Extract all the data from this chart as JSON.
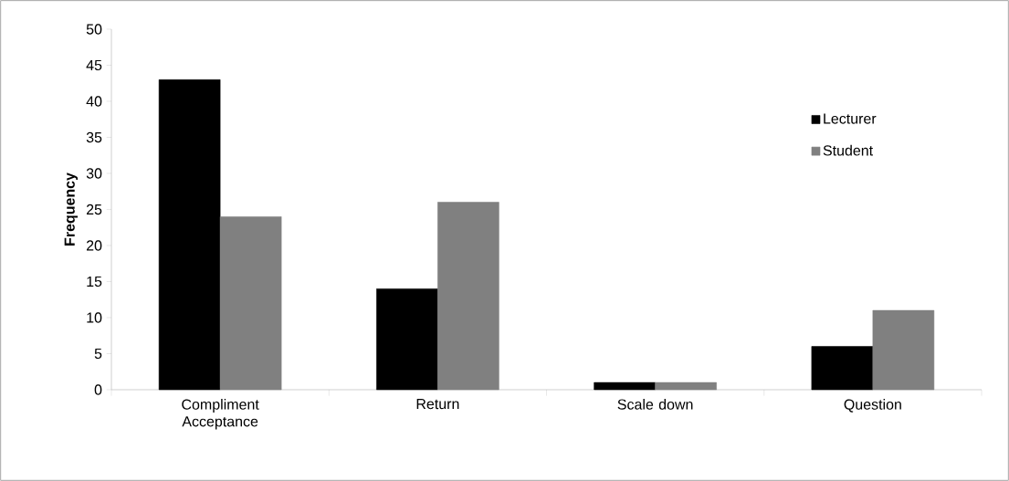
{
  "chart_data": {
    "type": "bar",
    "ylabel": "Frequency",
    "categories": [
      "Compliment Acceptance",
      "Return",
      "Scale down",
      "Question"
    ],
    "series": [
      {
        "name": "Lecturer",
        "color": "#000000",
        "values": [
          43,
          14,
          1,
          6
        ]
      },
      {
        "name": "Student",
        "color": "#808080",
        "values": [
          24,
          26,
          1,
          11
        ]
      }
    ],
    "ylim": [
      0,
      50
    ],
    "yticks": [
      0,
      5,
      10,
      15,
      20,
      25,
      30,
      35,
      40,
      45,
      50
    ],
    "legend": "right"
  }
}
